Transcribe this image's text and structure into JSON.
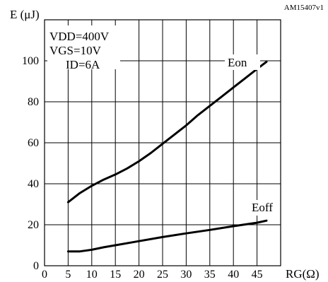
{
  "chart_data": {
    "type": "line",
    "code": "AM15407v1",
    "ylabel": "E (μJ)",
    "xlabel": "RG(Ω)",
    "xlim": [
      0,
      50
    ],
    "ylim": [
      0,
      120
    ],
    "x_ticks": [
      0,
      5,
      10,
      15,
      20,
      25,
      30,
      35,
      40,
      45
    ],
    "y_ticks": [
      0,
      20,
      40,
      60,
      80,
      100
    ],
    "grid": true,
    "conditions": [
      "VDD=400V",
      "VGS=10V",
      "ID=6A"
    ],
    "series": [
      {
        "name": "Eon",
        "x": [
          5,
          7.5,
          10,
          12.5,
          15,
          17.5,
          20,
          22.5,
          25,
          27.5,
          30,
          32.5,
          35,
          37.5,
          40,
          42.5,
          45,
          47
        ],
        "y": [
          31,
          35.5,
          39,
          42,
          44.5,
          47.5,
          51,
          55,
          59.5,
          64,
          68.5,
          73.5,
          78,
          82.5,
          87,
          91.5,
          96,
          99.5
        ]
      },
      {
        "name": "Eoff",
        "x": [
          5,
          7.5,
          10,
          12.5,
          15,
          20,
          25,
          30,
          35,
          40,
          45,
          47
        ],
        "y": [
          7,
          7,
          7.8,
          9,
          10,
          12,
          14,
          15.8,
          17.5,
          19.3,
          21,
          22
        ]
      }
    ]
  }
}
